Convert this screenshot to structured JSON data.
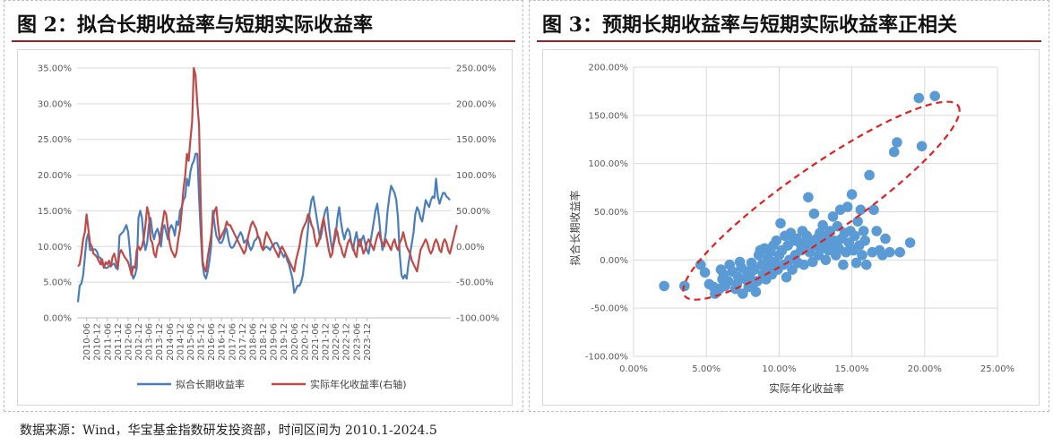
{
  "panels": {
    "left_title": "图 2：拟合长期收益率与短期实际收益率",
    "right_title": "图 3：预期长期收益率与短期实际收益率正相关"
  },
  "source_note": "数据来源：Wind，华宝基金指数研发投资部，时间区间为 2010.1-2024.5",
  "colors": {
    "blue": "#4a7ebb",
    "red": "#be4b48",
    "scatter": "#5b9bd5",
    "ellipse": "#e02020"
  },
  "chart_data": [
    {
      "type": "line",
      "title": "",
      "x_ticks": [
        "2010-06",
        "2010-12",
        "2011-06",
        "2011-12",
        "2012-06",
        "2012-12",
        "2013-06",
        "2013-12",
        "2014-06",
        "2014-12",
        "2015-06",
        "2015-12",
        "2016-06",
        "2016-12",
        "2017-06",
        "2017-12",
        "2018-06",
        "2018-12",
        "2019-06",
        "2019-12",
        "2020-06",
        "2020-12",
        "2021-06",
        "2021-12",
        "2022-06",
        "2022-12",
        "2023-06",
        "2023-12"
      ],
      "y_left_ticks": [
        "0.00%",
        "5.00%",
        "10.00%",
        "15.00%",
        "20.00%",
        "25.00%",
        "30.00%",
        "35.00%"
      ],
      "y_right_ticks": [
        "-100.00%",
        "-50.00%",
        "0.00%",
        "50.00%",
        "100.00%",
        "150.00%",
        "200.00%",
        "250.00%"
      ],
      "ylim_left": [
        0,
        35
      ],
      "ylim_right": [
        -100,
        250
      ],
      "x_start": "2010-01",
      "grid": true,
      "legend_position": "bottom",
      "series": [
        {
          "name": "拟合长期收益率",
          "axis": "left",
          "color": "#4a7ebb",
          "values": [
            2.2,
            4.5,
            4.8,
            6.0,
            8.5,
            11.0,
            11.8,
            9.5,
            9.5,
            9.6,
            9.6,
            9.3,
            8.5,
            8.4,
            7.5,
            7.2,
            7.0,
            7.0,
            7.3,
            7.2,
            7.5,
            7.6,
            7.0,
            6.8,
            11.5,
            11.8,
            12.0,
            12.5,
            13.0,
            12.0,
            9.5,
            6.5,
            5.5,
            6.0,
            7.0,
            14.0,
            15.0,
            14.0,
            11.0,
            9.5,
            10.5,
            13.0,
            14.0,
            12.0,
            11.0,
            12.0,
            12.5,
            11.5,
            10.0,
            12.5,
            13.0,
            12.0,
            11.0,
            12.5,
            13.0,
            12.5,
            11.5,
            13.5,
            13.0,
            15.0,
            15.5,
            16.5,
            17.0,
            19.5,
            18.5,
            20.5,
            21.5,
            22.0,
            23.0,
            23.0,
            17.0,
            12.0,
            7.5,
            6.0,
            5.5,
            6.5,
            8.0,
            10.0,
            15.0,
            13.0,
            11.5,
            11.0,
            10.5,
            10.5,
            11.0,
            12.0,
            12.5,
            11.0,
            10.0,
            9.8,
            10.0,
            10.5,
            11.0,
            11.5,
            12.0,
            11.5,
            10.5,
            10.8,
            11.0,
            10.0,
            9.5,
            10.0,
            10.8,
            11.0,
            11.5,
            11.0,
            10.0,
            9.5,
            9.8,
            10.0,
            9.8,
            9.5,
            10.0,
            10.2,
            10.5,
            10.5,
            10.0,
            9.5,
            9.0,
            8.5,
            9.0,
            8.0,
            7.5,
            6.5,
            5.5,
            3.5,
            4.0,
            4.5,
            4.5,
            5.0,
            6.0,
            8.0,
            10.0,
            12.5,
            15.0,
            16.5,
            17.0,
            15.5,
            14.0,
            12.5,
            11.0,
            12.0,
            14.0,
            15.0,
            15.5,
            13.0,
            11.0,
            9.5,
            10.5,
            11.5,
            14.0,
            15.5,
            13.5,
            12.0,
            11.0,
            12.0,
            12.5,
            12.0,
            10.5,
            9.5,
            11.0,
            12.0,
            10.5,
            10.0,
            11.0,
            11.5,
            10.5,
            9.5,
            9.0,
            10.5,
            12.0,
            13.5,
            15.0,
            16.0,
            14.0,
            11.5,
            9.5,
            10.5,
            12.0,
            15.0,
            17.0,
            18.5,
            18.0,
            17.5,
            16.5,
            14.0,
            9.0,
            6.0,
            5.5,
            6.0,
            5.5,
            7.5,
            9.0,
            10.5,
            12.0,
            14.5,
            15.5,
            15.0,
            14.0,
            13.5,
            15.0,
            16.5,
            16.0,
            15.5,
            16.5,
            17.0,
            16.8,
            19.5,
            17.0,
            16.0,
            16.8,
            17.5,
            17.5,
            17.0,
            16.8,
            16.5
          ]
        },
        {
          "name": "实际年化收益率(右轴)",
          "axis": "right",
          "color": "#be4b48",
          "values": [
            -28,
            -25,
            -10,
            10,
            20,
            45,
            25,
            5,
            0,
            -10,
            -12,
            -15,
            -20,
            -25,
            -18,
            -30,
            -22,
            -25,
            -20,
            -28,
            -15,
            -10,
            -20,
            -30,
            -10,
            -5,
            -10,
            -15,
            -18,
            -22,
            -30,
            -40,
            -28,
            -30,
            -5,
            0,
            -5,
            0,
            10,
            30,
            55,
            45,
            10,
            5,
            -10,
            -15,
            0,
            5,
            20,
            35,
            50,
            45,
            25,
            5,
            -5,
            -10,
            -15,
            -8,
            10,
            25,
            50,
            80,
            100,
            130,
            120,
            150,
            175,
            270,
            240,
            200,
            170,
            60,
            -20,
            -30,
            -35,
            -15,
            0,
            15,
            40,
            50,
            55,
            30,
            10,
            15,
            20,
            25,
            35,
            30,
            30,
            25,
            20,
            15,
            10,
            5,
            0,
            -5,
            -10,
            -5,
            10,
            20,
            30,
            35,
            30,
            25,
            15,
            10,
            0,
            -5,
            10,
            20,
            15,
            10,
            5,
            0,
            -5,
            -10,
            -15,
            -5,
            0,
            -5,
            -10,
            -15,
            -20,
            -25,
            -30,
            -35,
            -20,
            -10,
            0,
            15,
            25,
            30,
            35,
            45,
            40,
            30,
            25,
            10,
            0,
            5,
            15,
            30,
            40,
            25,
            10,
            -5,
            -15,
            -10,
            10,
            25,
            20,
            5,
            0,
            -10,
            -15,
            -5,
            5,
            10,
            5,
            0,
            -10,
            -15,
            5,
            10,
            0,
            -10,
            -5,
            5,
            10,
            5,
            0,
            -5,
            5,
            15,
            20,
            10,
            5,
            0,
            10,
            5,
            0,
            -5,
            5,
            10,
            0,
            -5,
            5,
            10,
            20,
            10,
            0,
            -5,
            -10,
            -20,
            -25,
            -30,
            -35,
            -20,
            -5,
            0,
            5,
            10,
            5,
            -5,
            -10,
            -5,
            5,
            10,
            5,
            -5,
            -8,
            5,
            10,
            5,
            -5,
            -10,
            0,
            10,
            20,
            30
          ]
        }
      ]
    },
    {
      "type": "scatter",
      "title": "",
      "xlabel": "实际年化收益率",
      "ylabel": "拟合长期收益率",
      "x_ticks": [
        "0.00%",
        "5.00%",
        "10.00%",
        "15.00%",
        "20.00%",
        "25.00%"
      ],
      "y_ticks": [
        "-100.00%",
        "-50.00%",
        "0.00%",
        "50.00%",
        "100.00%",
        "150.00%",
        "200.00%"
      ],
      "xlim": [
        0,
        25
      ],
      "ylim": [
        -100,
        200
      ],
      "grid": true,
      "marker_color": "#5b9bd5",
      "annotation": "red dashed ellipse around point cloud",
      "points": [
        [
          2.1,
          -27
        ],
        [
          3.5,
          -27
        ],
        [
          4.6,
          -5
        ],
        [
          4.9,
          -13
        ],
        [
          5.2,
          -25
        ],
        [
          5.5,
          -28
        ],
        [
          5.6,
          -35
        ],
        [
          5.9,
          -30
        ],
        [
          6.0,
          -10
        ],
        [
          6.1,
          -20
        ],
        [
          6.2,
          -15
        ],
        [
          6.3,
          -27
        ],
        [
          6.5,
          -22
        ],
        [
          6.6,
          -5
        ],
        [
          6.8,
          -12
        ],
        [
          7.0,
          -30
        ],
        [
          7.1,
          -25
        ],
        [
          7.2,
          -18
        ],
        [
          7.3,
          -2
        ],
        [
          7.4,
          -8
        ],
        [
          7.5,
          -35
        ],
        [
          7.7,
          -20
        ],
        [
          7.8,
          -12
        ],
        [
          7.9,
          -28
        ],
        [
          8.0,
          -15
        ],
        [
          8.1,
          -3
        ],
        [
          8.2,
          -25
        ],
        [
          8.3,
          -10
        ],
        [
          8.4,
          -33
        ],
        [
          8.5,
          -22
        ],
        [
          8.6,
          5
        ],
        [
          8.7,
          10
        ],
        [
          8.8,
          -5
        ],
        [
          8.9,
          -15
        ],
        [
          9.0,
          12
        ],
        [
          9.1,
          -20
        ],
        [
          9.2,
          2
        ],
        [
          9.3,
          -8
        ],
        [
          9.4,
          8
        ],
        [
          9.5,
          -15
        ],
        [
          9.6,
          15
        ],
        [
          9.7,
          -2
        ],
        [
          9.8,
          20
        ],
        [
          9.9,
          -10
        ],
        [
          10.0,
          5
        ],
        [
          10.1,
          38
        ],
        [
          10.2,
          10
        ],
        [
          10.3,
          -5
        ],
        [
          10.4,
          25
        ],
        [
          10.5,
          -18
        ],
        [
          10.6,
          15
        ],
        [
          10.7,
          0
        ],
        [
          10.8,
          28
        ],
        [
          10.9,
          -10
        ],
        [
          11.0,
          20
        ],
        [
          11.1,
          5
        ],
        [
          11.2,
          22
        ],
        [
          11.3,
          -3
        ],
        [
          11.4,
          18
        ],
        [
          11.5,
          10
        ],
        [
          11.6,
          30
        ],
        [
          11.7,
          -5
        ],
        [
          11.8,
          15
        ],
        [
          11.9,
          25
        ],
        [
          12.0,
          65
        ],
        [
          12.1,
          8
        ],
        [
          12.2,
          20
        ],
        [
          12.3,
          -2
        ],
        [
          12.4,
          48
        ],
        [
          12.5,
          15
        ],
        [
          12.6,
          22
        ],
        [
          12.7,
          5
        ],
        [
          12.8,
          28
        ],
        [
          12.9,
          12
        ],
        [
          13.0,
          36
        ],
        [
          13.1,
          18
        ],
        [
          13.2,
          0
        ],
        [
          13.3,
          25
        ],
        [
          13.4,
          10
        ],
        [
          13.5,
          30
        ],
        [
          13.6,
          15
        ],
        [
          13.7,
          45
        ],
        [
          13.8,
          20
        ],
        [
          13.9,
          5
        ],
        [
          14.0,
          35
        ],
        [
          14.1,
          12
        ],
        [
          14.2,
          52
        ],
        [
          14.3,
          22
        ],
        [
          14.4,
          -5
        ],
        [
          14.5,
          28
        ],
        [
          14.6,
          8
        ],
        [
          14.7,
          55
        ],
        [
          14.8,
          18
        ],
        [
          14.9,
          30
        ],
        [
          15.0,
          68
        ],
        [
          15.1,
          10
        ],
        [
          15.2,
          25
        ],
        [
          15.3,
          -3
        ],
        [
          15.4,
          40
        ],
        [
          15.5,
          15
        ],
        [
          15.6,
          52
        ],
        [
          15.7,
          5
        ],
        [
          15.8,
          30
        ],
        [
          15.9,
          20
        ],
        [
          16.0,
          -5
        ],
        [
          16.2,
          88
        ],
        [
          16.4,
          8
        ],
        [
          16.5,
          52
        ],
        [
          16.7,
          30
        ],
        [
          16.9,
          10
        ],
        [
          17.1,
          5
        ],
        [
          17.3,
          22
        ],
        [
          17.6,
          8
        ],
        [
          17.9,
          112
        ],
        [
          18.1,
          122
        ],
        [
          18.3,
          8
        ],
        [
          19.0,
          18
        ],
        [
          19.6,
          168
        ],
        [
          19.8,
          118
        ],
        [
          20.7,
          170
        ]
      ]
    }
  ]
}
